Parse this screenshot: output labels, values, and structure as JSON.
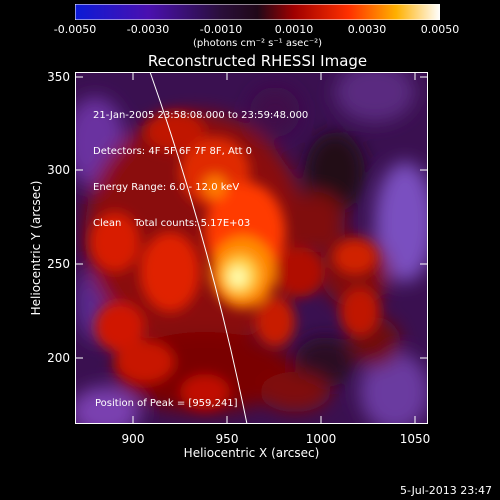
{
  "colorbar": {
    "ticks": [
      "-0.0050",
      "-0.0030",
      "-0.0010",
      "0.0010",
      "0.0030",
      "0.0050"
    ],
    "units": "(photons cm⁻² s⁻¹ asec⁻²)",
    "stops": [
      "#0b1bd6",
      "#3a0f9a",
      "#30104a",
      "#5a1a7a",
      "#a00000",
      "#ff2a00",
      "#ff9a00",
      "#ffff60",
      "#ffffff"
    ]
  },
  "plot": {
    "title": "Reconstructed RHESSI Image",
    "xlabel": "Heliocentric X (arcsec)",
    "ylabel": "Heliocentric Y (arcsec)",
    "xticks": [
      "900",
      "950",
      "1000",
      "1050"
    ],
    "yticks": [
      "350",
      "300",
      "250",
      "200"
    ],
    "info_lines": [
      "21-Jan-2005 23:58:08.000 to 23:59:48.000",
      "Detectors: 4F 5F 6F 7F 8F, Att 0",
      "Energy Range: 6.0 - 12.0 keV",
      "Clean    Total counts: 5.17E+03"
    ],
    "peak_text": "Position of Peak = [959,241]"
  },
  "datestamp": "5-Jul-2013 23:47"
}
